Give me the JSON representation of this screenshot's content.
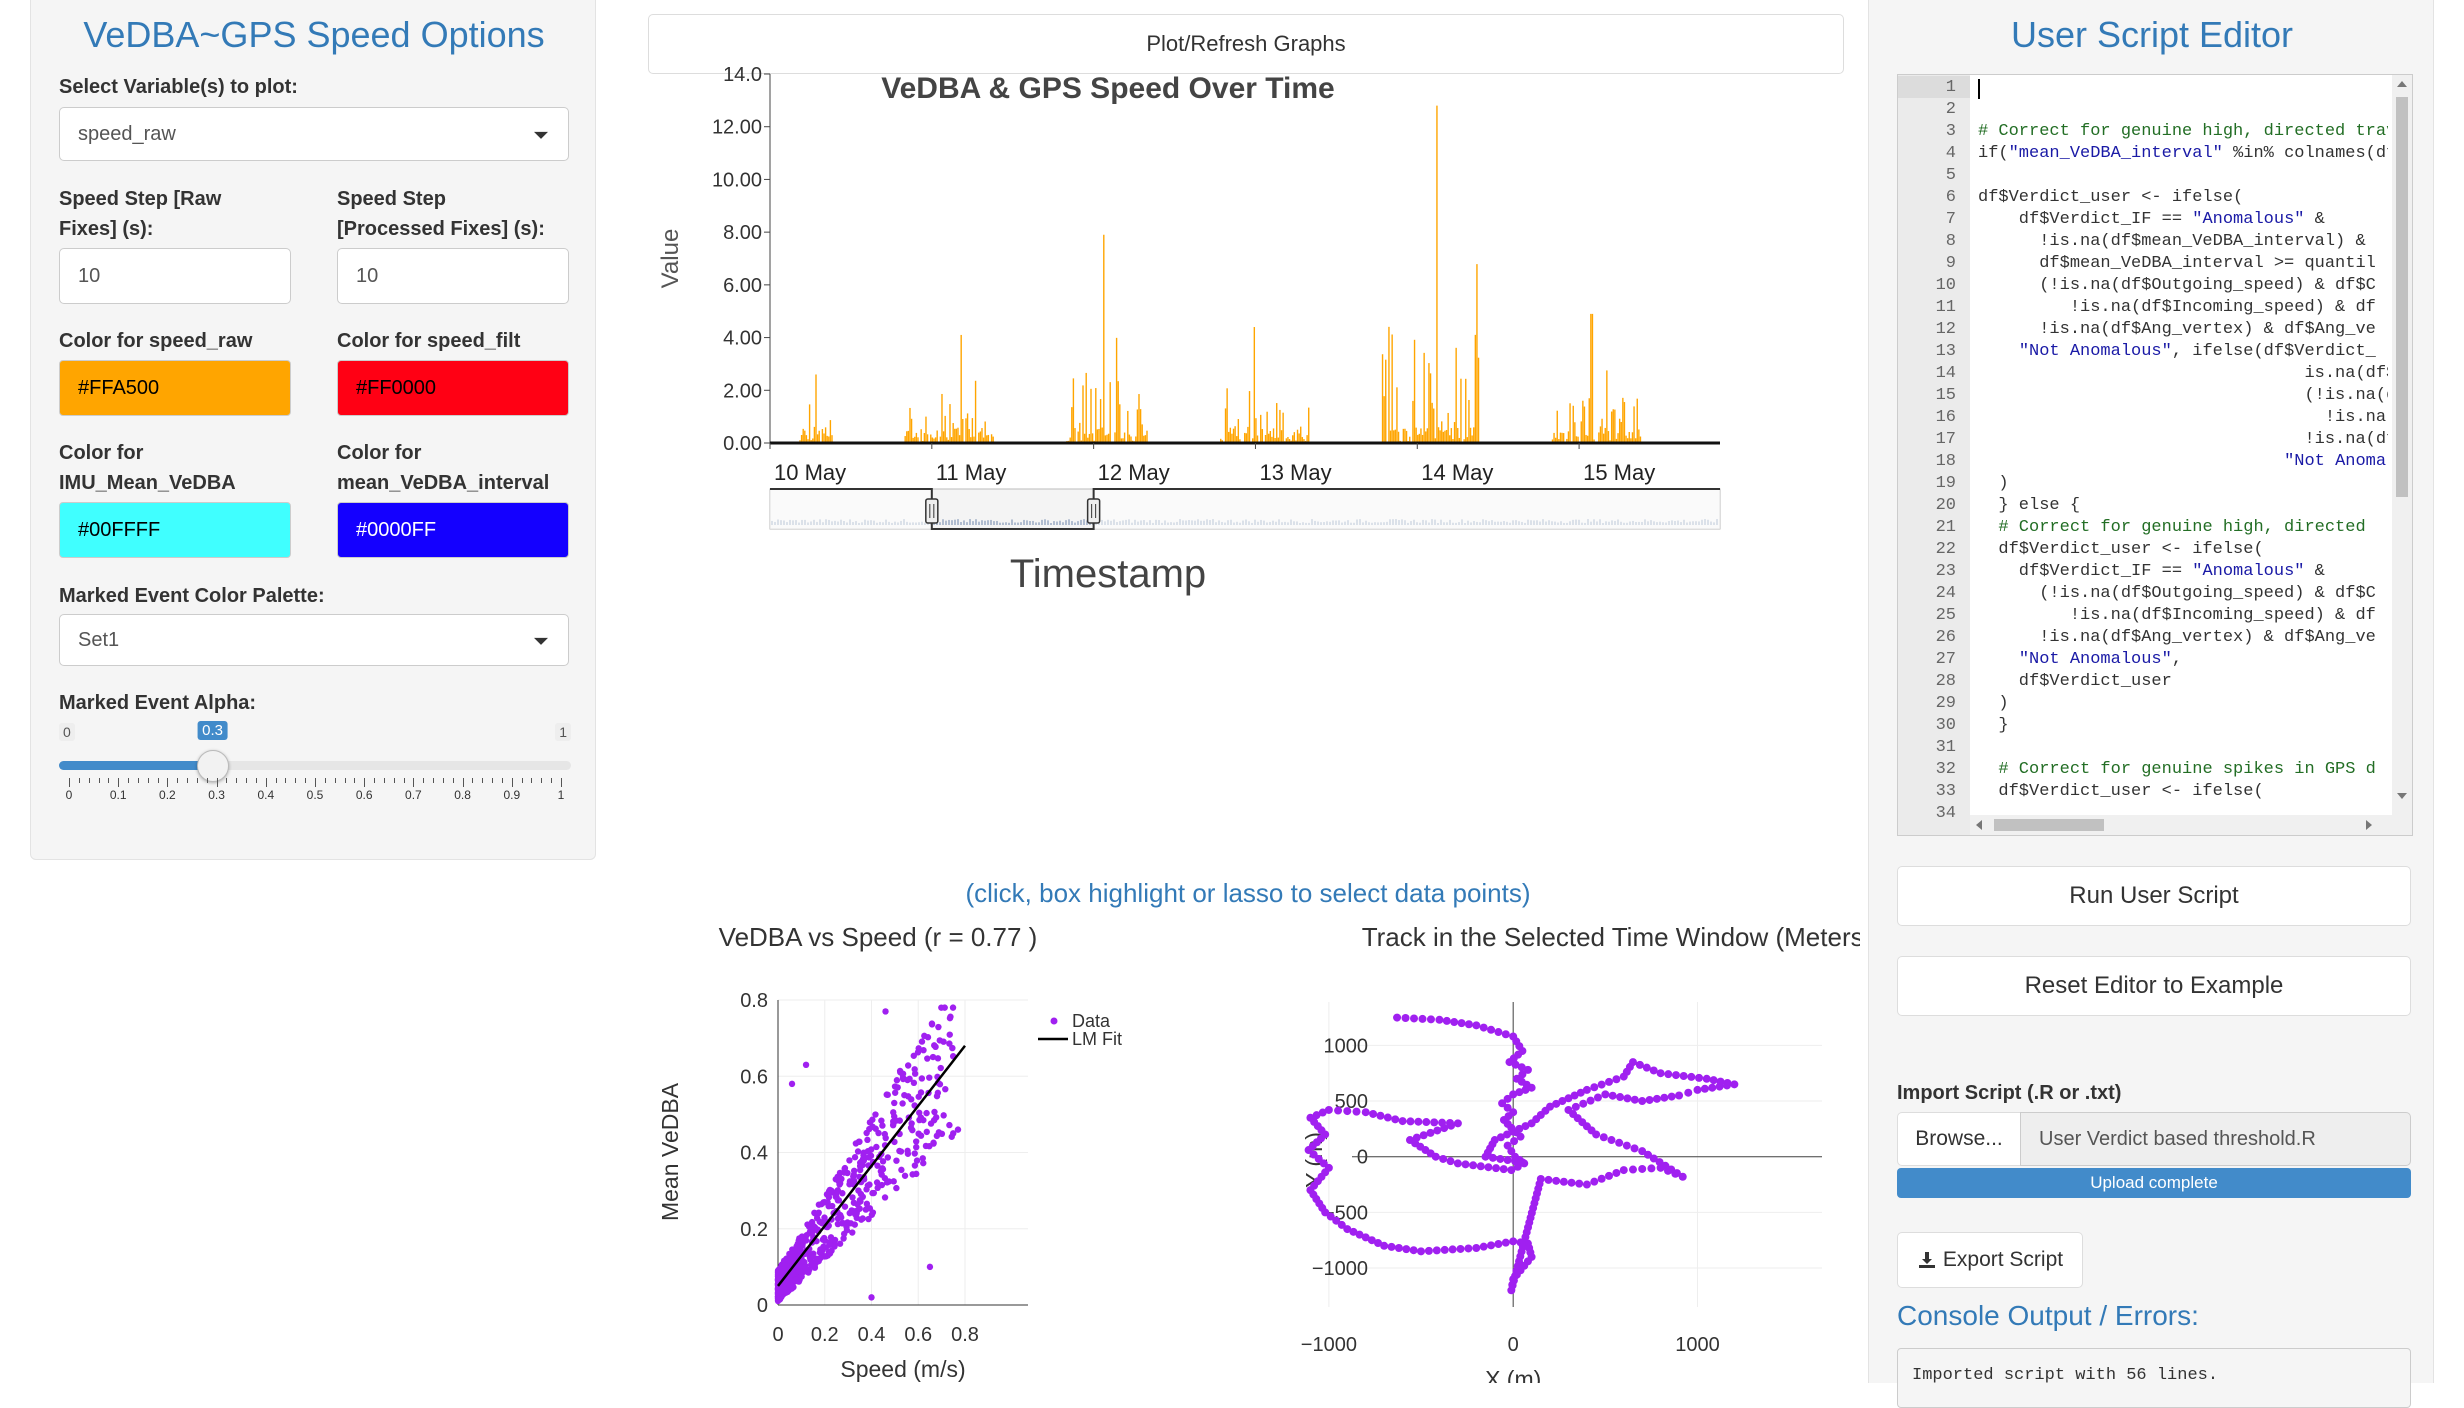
{
  "left": {
    "title": "VeDBA~GPS Speed Options",
    "select_var_label": "Select Variable(s) to plot:",
    "select_var_value": "speed_raw",
    "step_raw_label_1": "Speed Step [Raw",
    "step_raw_label_2": "Fixes] (s):",
    "step_raw_value": "10",
    "step_proc_label_1": "Speed Step",
    "step_proc_label_2": "[Processed Fixes] (s):",
    "step_proc_value": "10",
    "color_raw_label": "Color for speed_raw",
    "color_raw_value": "#FFA500",
    "color_filt_label": "Color for speed_filt",
    "color_filt_value": "#FF0000",
    "color_imu_label_1": "Color for",
    "color_imu_label_2": "IMU_Mean_VeDBA",
    "color_imu_value": "#00FFFF",
    "color_int_label_1": "Color for",
    "color_int_label_2": "mean_VeDBA_interval",
    "color_int_value": "#0000FF",
    "palette_label": "Marked Event Color Palette:",
    "palette_value": "Set1",
    "alpha_label": "Marked Event Alpha:",
    "alpha_min": "0",
    "alpha_max": "1",
    "alpha_value": "0.3",
    "alpha_fraction": 0.3,
    "alpha_ticks": [
      "0",
      "0.1",
      "0.2",
      "0.3",
      "0.4",
      "0.5",
      "0.6",
      "0.7",
      "0.8",
      "0.9",
      "1"
    ]
  },
  "center": {
    "plot_button": "Plot/Refresh Graphs",
    "select_hint": "(click, box highlight or lasso to select data points)"
  },
  "right": {
    "title": "User Script Editor",
    "run_button": "Run User Script",
    "reset_button": "Reset Editor to Example",
    "import_label": "Import Script (.R or .txt)",
    "browse_button": "Browse...",
    "file_name": "User Verdict  based threshold.R",
    "upload_status": "Upload complete",
    "upload_fraction": 1.0,
    "export_button": "Export Script",
    "console_title": "Console Output / Errors:",
    "console_text": "Imported script with 56 lines.",
    "code_lines": [
      "",
      "",
      "# Correct for genuine high, directed trav",
      "if(\"mean_VeDBA_interval\" %in% colnames(df",
      "",
      "df$Verdict_user <- ifelse(",
      "    df$Verdict_IF == \"Anomalous\" &",
      "      !is.na(df$mean_VeDBA_interval) &",
      "      df$mean_VeDBA_interval >= quantil",
      "      (!is.na(df$Outgoing_speed) & df$C",
      "         !is.na(df$Incoming_speed) & df",
      "      !is.na(df$Ang_vertex) & df$Ang_ve",
      "    \"Not Anomalous\", ifelse(df$Verdict_",
      "                                is.na(df$",
      "                                (!is.na(d",
      "                                  !is.na",
      "                                !is.na(df",
      "                              \"Not Anomal",
      "  )",
      "  } else {",
      "  # Correct for genuine high, directed",
      "  df$Verdict_user <- ifelse(",
      "    df$Verdict_IF == \"Anomalous\" &",
      "      (!is.na(df$Outgoing_speed) & df$C",
      "         !is.na(df$Incoming_speed) & df",
      "      !is.na(df$Ang_vertex) & df$Ang_ve",
      "    \"Not Anomalous\",",
      "    df$Verdict_user",
      "  )",
      "  }",
      "",
      "  # Correct for genuine spikes in GPS d",
      "  df$Verdict_user <- ifelse(",
      ""
    ]
  },
  "chart_data": [
    {
      "type": "bar",
      "title": "VeDBA & GPS Speed Over Time",
      "xlabel": "Timestamp",
      "ylabel": "Value",
      "ylim": [
        0,
        14
      ],
      "y_ticks": [
        "0.00",
        "2.00",
        "4.00",
        "6.00",
        "8.00",
        "10.00",
        "12.00",
        "14.0"
      ],
      "x_ticks": [
        "10 May",
        "11 May",
        "12 May",
        "13 May",
        "14 May",
        "15 May"
      ],
      "series": [
        {
          "name": "speed_raw",
          "color": "#FFA500"
        }
      ],
      "activity_bursts": [
        {
          "start_day": 0.0,
          "end_day": 0.2,
          "peak": 2.6
        },
        {
          "start_day": 0.65,
          "end_day": 1.2,
          "peak": 4.1
        },
        {
          "start_day": 1.65,
          "end_day": 2.15,
          "peak": 7.9
        },
        {
          "start_day": 2.6,
          "end_day": 3.15,
          "peak": 4.4
        },
        {
          "start_day": 3.6,
          "end_day": 4.2,
          "peak": 12.8
        },
        {
          "start_day": 4.65,
          "end_day": 5.2,
          "peak": 4.9
        }
      ],
      "rangeslider": {
        "from_day": 1.0,
        "to_day": 2.0
      }
    },
    {
      "type": "scatter",
      "title": "VeDBA vs Speed (r = 0.77 )",
      "xlabel": "Speed (m/s)",
      "ylabel": "Mean VeDBA",
      "xlim": [
        0,
        0.85
      ],
      "ylim": [
        0,
        0.8
      ],
      "x_ticks": [
        "0",
        "0.2",
        "0.4",
        "0.6",
        "0.8"
      ],
      "y_ticks": [
        "0",
        "0.2",
        "0.4",
        "0.6",
        "0.8"
      ],
      "legend": [
        "Data",
        "LM Fit"
      ],
      "legend_position": "top-right",
      "point_color": "#a020f0",
      "fit": {
        "x0": 0,
        "y0": 0.05,
        "x1": 0.8,
        "y1": 0.68
      }
    },
    {
      "type": "scatter",
      "title": "Track in the Selected Time Window (Meters)",
      "xlabel": "X (m)",
      "ylabel": "Y (m)",
      "xlim": [
        -1200,
        1350
      ],
      "ylim": [
        -1350,
        1300
      ],
      "x_ticks": [
        "−1000",
        "0",
        "1000"
      ],
      "y_ticks": [
        "1000",
        "500",
        "0",
        "−500",
        "−1000"
      ],
      "point_color": "#a020f0",
      "track": [
        [
          -630,
          1250
        ],
        [
          -400,
          1230
        ],
        [
          -200,
          1180
        ],
        [
          0,
          1080
        ],
        [
          50,
          950
        ],
        [
          -20,
          850
        ],
        [
          80,
          780
        ],
        [
          20,
          700
        ],
        [
          100,
          620
        ],
        [
          0,
          560
        ],
        [
          -60,
          480
        ],
        [
          0,
          400
        ],
        [
          -50,
          330
        ],
        [
          -10,
          260
        ],
        [
          40,
          180
        ],
        [
          -30,
          100
        ],
        [
          10,
          0
        ],
        [
          60,
          -60
        ],
        [
          -10,
          -120
        ],
        [
          -300,
          -60
        ],
        [
          -420,
          0
        ],
        [
          -560,
          150
        ],
        [
          -300,
          300
        ],
        [
          -600,
          320
        ],
        [
          -800,
          400
        ],
        [
          -1000,
          420
        ],
        [
          -1100,
          350
        ],
        [
          -1020,
          200
        ],
        [
          -1110,
          60
        ],
        [
          -1000,
          -100
        ],
        [
          -1100,
          -300
        ],
        [
          -1020,
          -500
        ],
        [
          -900,
          -650
        ],
        [
          -700,
          -800
        ],
        [
          -500,
          -850
        ],
        [
          -200,
          -820
        ],
        [
          0,
          -760
        ],
        [
          80,
          -780
        ],
        [
          100,
          -900
        ],
        [
          0,
          -1100
        ],
        [
          -10,
          -1200
        ],
        [
          150,
          -200
        ],
        [
          400,
          -250
        ],
        [
          600,
          -120
        ],
        [
          800,
          -100
        ],
        [
          920,
          -180
        ],
        [
          700,
          50
        ],
        [
          450,
          200
        ],
        [
          300,
          420
        ],
        [
          500,
          560
        ],
        [
          700,
          500
        ],
        [
          900,
          550
        ],
        [
          1000,
          600
        ],
        [
          1200,
          650
        ],
        [
          1050,
          700
        ],
        [
          800,
          750
        ],
        [
          650,
          850
        ],
        [
          600,
          720
        ],
        [
          400,
          600
        ],
        [
          200,
          450
        ],
        [
          100,
          300
        ],
        [
          -100,
          150
        ],
        [
          -150,
          0
        ],
        [
          50,
          -50
        ]
      ]
    }
  ]
}
